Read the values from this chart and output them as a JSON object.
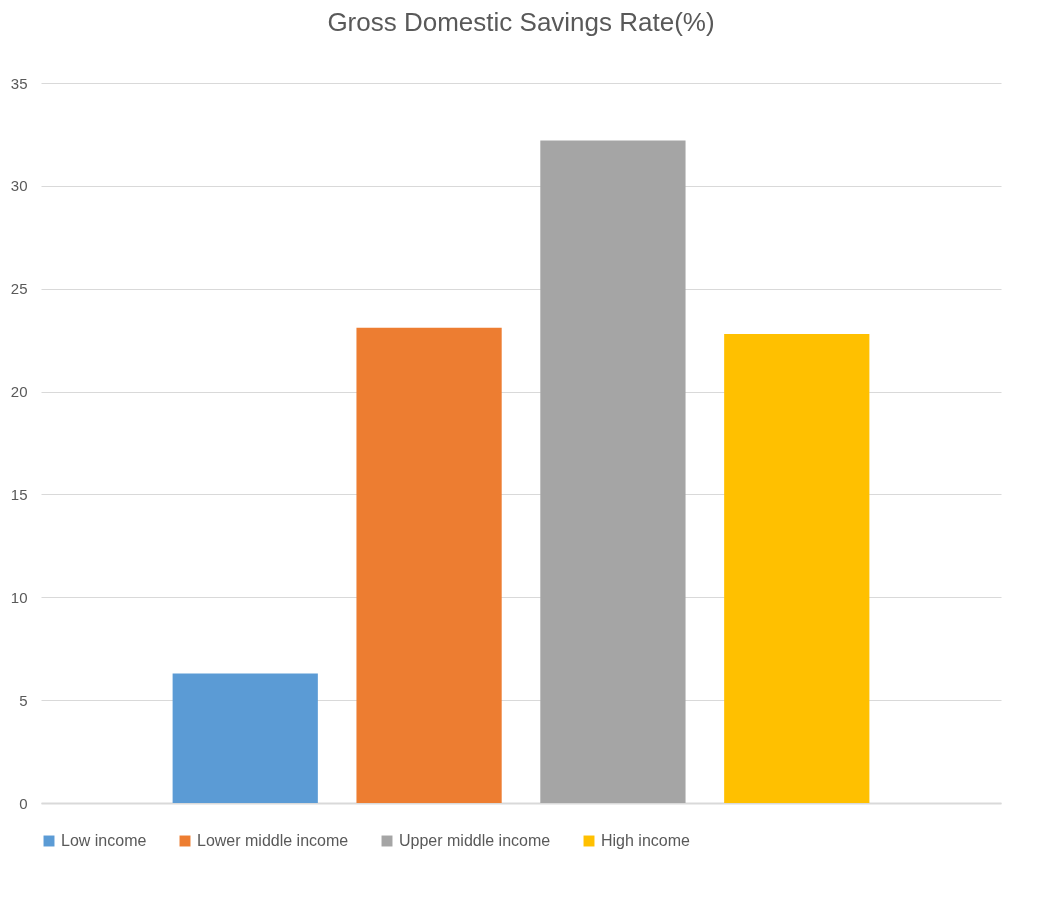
{
  "chart_data": {
    "type": "bar",
    "title": "Gross Domestic Savings Rate(%)",
    "categories": [
      null
    ],
    "series": [
      {
        "name": "Low income",
        "color": "#5b9bd5",
        "values": [
          6.3
        ]
      },
      {
        "name": "Lower middle income",
        "color": "#ed7d31",
        "values": [
          23.1
        ]
      },
      {
        "name": "Upper middle income",
        "color": "#a5a5a5",
        "values": [
          32.2
        ]
      },
      {
        "name": "High income",
        "color": "#ffc000",
        "values": [
          22.8
        ]
      }
    ],
    "ylim": [
      0,
      35
    ],
    "yticks": [
      0,
      5,
      10,
      15,
      20,
      25,
      30,
      35
    ],
    "grid": "y",
    "legend": "bottom",
    "tick_labels": "y"
  }
}
